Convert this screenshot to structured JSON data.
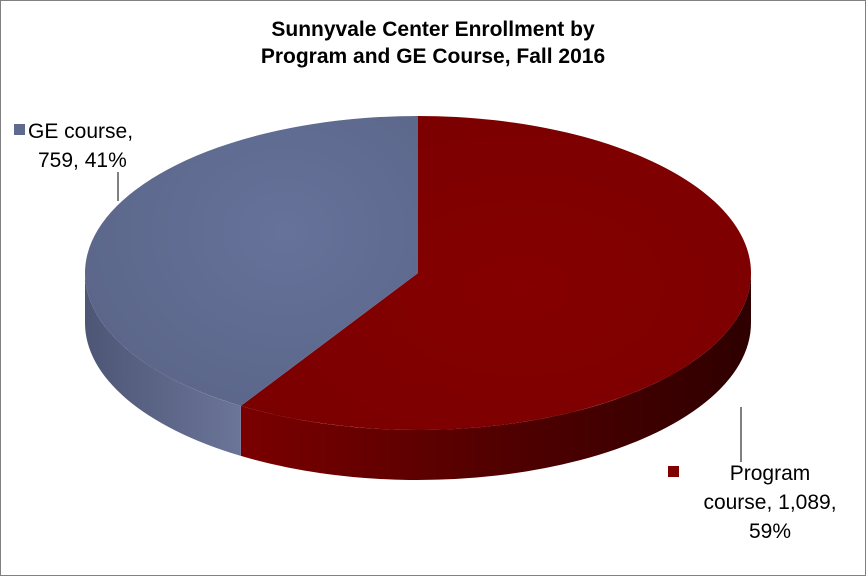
{
  "chart_data": {
    "type": "pie",
    "title_lines": [
      "Sunnyvale Center Enrollment by",
      "Program and GE Course, Fall 2016"
    ],
    "slices": [
      {
        "name": "Program course",
        "value": 1089,
        "percent": 59,
        "color": "#800000",
        "label_lines": [
          "Program",
          "course, 1,089,",
          "59%"
        ]
      },
      {
        "name": "GE course",
        "value": 759,
        "percent": 41,
        "color": "#5f6b8e",
        "label_lines": [
          "GE course,",
          "759, 41%"
        ]
      }
    ],
    "legend_keys": true,
    "three_d": true
  }
}
